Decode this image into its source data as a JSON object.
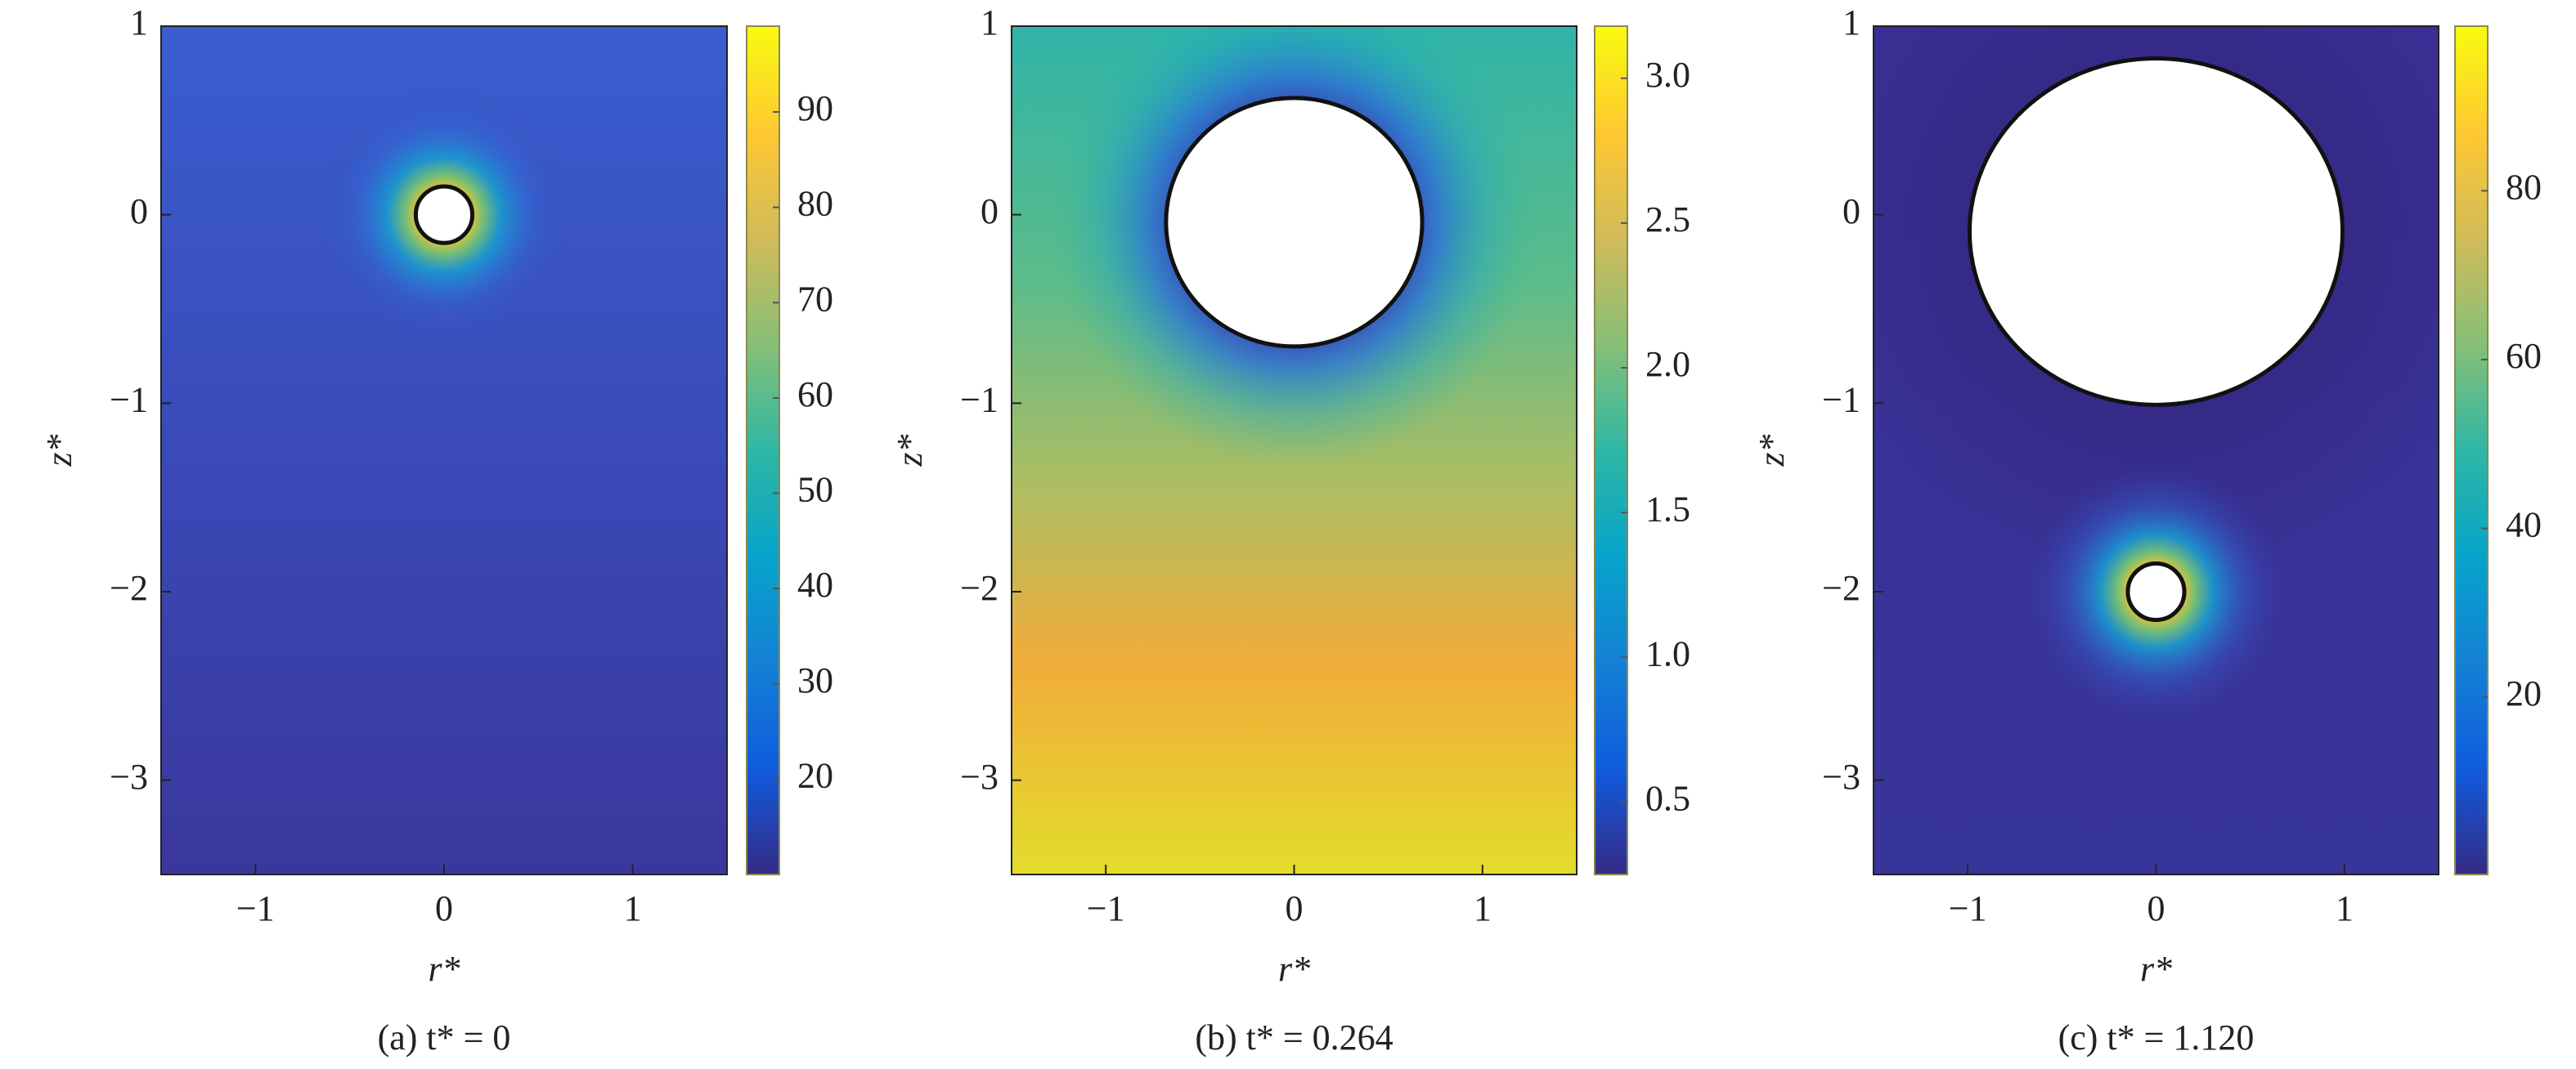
{
  "chart_data": [
    {
      "type": "heatmap",
      "caption": "(a) t* = 0",
      "x_label": "r*",
      "y_label": "z*",
      "colormap": "parula",
      "xlim": [
        -1.5,
        1.5
      ],
      "ylim": [
        -3.5,
        1
      ],
      "xticks": [
        {
          "value": -1,
          "label": "−1"
        },
        0,
        1
      ],
      "yticks": [
        {
          "value": -3,
          "label": "−3"
        },
        {
          "value": -2,
          "label": "−2"
        },
        {
          "value": -1,
          "label": "−1"
        },
        0,
        1
      ],
      "clim": [
        10,
        99
      ],
      "cticks": [
        20,
        30,
        40,
        50,
        60,
        70,
        80,
        90
      ],
      "bubbles": [
        {
          "r": 0,
          "z": 0,
          "rx": 0.15,
          "ry": 0.15
        }
      ]
    },
    {
      "type": "heatmap",
      "caption": "(b) t* = 0.264",
      "x_label": "r*",
      "y_label": "z*",
      "colormap": "parula",
      "xlim": [
        -1.5,
        1.5
      ],
      "ylim": [
        -3.5,
        1
      ],
      "xticks": [
        {
          "value": -1,
          "label": "−1"
        },
        0,
        1
      ],
      "yticks": [
        {
          "value": -3,
          "label": "−3"
        },
        {
          "value": -2,
          "label": "−2"
        },
        {
          "value": -1,
          "label": "−1"
        },
        0,
        1
      ],
      "clim": [
        0.25,
        3.18
      ],
      "cticks": [
        {
          "value": 0.5,
          "label": "0.5"
        },
        {
          "value": 1,
          "label": "1.0"
        },
        {
          "value": 1.5,
          "label": "1.5"
        },
        {
          "value": 2,
          "label": "2.0"
        },
        {
          "value": 2.5,
          "label": "2.5"
        },
        {
          "value": 3,
          "label": "3.0"
        }
      ],
      "bubbles": [
        {
          "r": 0,
          "z": -0.04,
          "rx": 0.68,
          "ry": 0.66
        }
      ]
    },
    {
      "type": "heatmap",
      "caption": "(c) t* = 1.120",
      "x_label": "r*",
      "y_label": "z*",
      "colormap": "parula",
      "xlim": [
        -1.5,
        1.5
      ],
      "ylim": [
        -3.5,
        1
      ],
      "xticks": [
        {
          "value": -1,
          "label": "−1"
        },
        0,
        1
      ],
      "yticks": [
        {
          "value": -3,
          "label": "−3"
        },
        {
          "value": -2,
          "label": "−2"
        },
        {
          "value": -1,
          "label": "−1"
        },
        0,
        1
      ],
      "clim": [
        -1,
        99.5
      ],
      "cticks": [
        20,
        40,
        60,
        80
      ],
      "bubbles": [
        {
          "r": 0,
          "z": -0.09,
          "rx": 0.99,
          "ry": 0.92
        },
        {
          "r": 0,
          "z": -2,
          "rx": 0.15,
          "ry": 0.15
        }
      ]
    }
  ]
}
